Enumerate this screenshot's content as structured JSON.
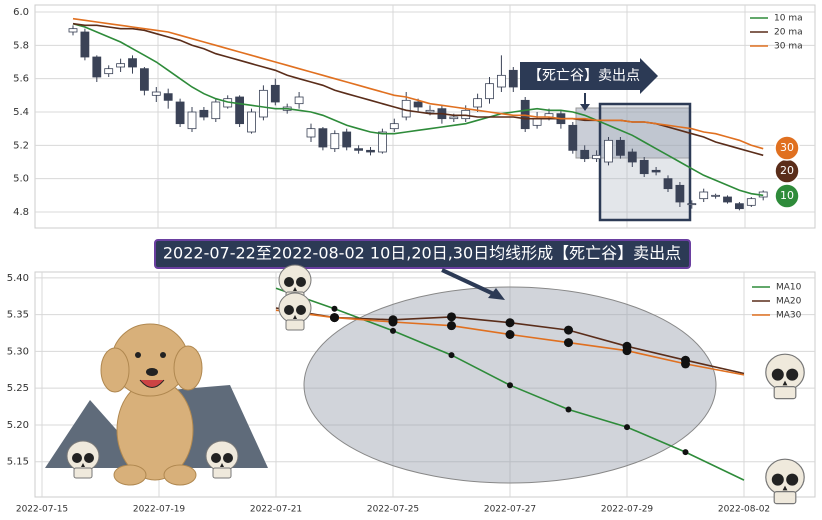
{
  "chart_data": [
    {
      "type": "candlestick",
      "ylim": [
        4.704,
        6.042
      ],
      "yticks": [
        4.8,
        {
          "value": 5.0,
          "label": "5.0"
        },
        5.2,
        5.4,
        5.6,
        5.8,
        {
          "value": 6.0,
          "label": "6.0"
        }
      ],
      "grid": true,
      "up_color": "#ffffff",
      "down_color": "#3a4256",
      "ohlc": [
        [
          5.88,
          5.92,
          5.86,
          5.9
        ],
        [
          5.88,
          5.9,
          5.71,
          5.73
        ],
        [
          5.73,
          5.74,
          5.58,
          5.61
        ],
        [
          5.63,
          5.68,
          5.61,
          5.66
        ],
        [
          5.67,
          5.72,
          5.64,
          5.69
        ],
        [
          5.72,
          5.74,
          5.63,
          5.67
        ],
        [
          5.66,
          5.67,
          5.5,
          5.53
        ],
        [
          5.5,
          5.55,
          5.46,
          5.52
        ],
        [
          5.51,
          5.54,
          5.42,
          5.47
        ],
        [
          5.46,
          5.48,
          5.31,
          5.33
        ],
        [
          5.3,
          5.43,
          5.28,
          5.4
        ],
        [
          5.41,
          5.43,
          5.35,
          5.37
        ],
        [
          5.36,
          5.48,
          5.34,
          5.46
        ],
        [
          5.43,
          5.5,
          5.42,
          5.48
        ],
        [
          5.49,
          5.5,
          5.31,
          5.33
        ],
        [
          5.28,
          5.42,
          5.27,
          5.4
        ],
        [
          5.37,
          5.56,
          5.35,
          5.53
        ],
        [
          5.56,
          5.6,
          5.44,
          5.46
        ],
        [
          5.41,
          5.45,
          5.39,
          5.43
        ],
        [
          5.45,
          5.52,
          5.42,
          5.49
        ],
        [
          5.25,
          5.33,
          5.22,
          5.3
        ],
        [
          5.3,
          5.31,
          5.17,
          5.19
        ],
        [
          5.18,
          5.29,
          5.16,
          5.27
        ],
        [
          5.28,
          5.3,
          5.17,
          5.19
        ],
        [
          5.18,
          5.2,
          5.15,
          5.17
        ],
        [
          5.17,
          5.19,
          5.14,
          5.16
        ],
        [
          5.16,
          5.3,
          5.15,
          5.28
        ],
        [
          5.3,
          5.36,
          5.28,
          5.33
        ],
        [
          5.37,
          5.52,
          5.35,
          5.47
        ],
        [
          5.46,
          5.48,
          5.4,
          5.43
        ],
        [
          5.4,
          5.44,
          5.38,
          5.41
        ],
        [
          5.42,
          5.44,
          5.33,
          5.36
        ],
        [
          5.36,
          5.39,
          5.34,
          5.37
        ],
        [
          5.36,
          5.44,
          5.34,
          5.41
        ],
        [
          5.43,
          5.51,
          5.4,
          5.48
        ],
        [
          5.48,
          5.61,
          5.45,
          5.57
        ],
        [
          5.55,
          5.74,
          5.52,
          5.62
        ],
        [
          5.65,
          5.67,
          5.52,
          5.55
        ],
        [
          5.47,
          5.49,
          5.28,
          5.3
        ],
        [
          5.32,
          5.4,
          5.3,
          5.36
        ],
        [
          5.37,
          5.42,
          5.35,
          5.39
        ],
        [
          5.39,
          5.41,
          5.3,
          5.33
        ],
        [
          5.32,
          5.34,
          5.15,
          5.17
        ],
        [
          5.17,
          5.2,
          5.1,
          5.12
        ],
        [
          5.12,
          5.17,
          5.1,
          5.14
        ],
        [
          5.1,
          5.25,
          5.08,
          5.23
        ],
        [
          5.23,
          5.25,
          5.12,
          5.14
        ],
        [
          5.16,
          5.18,
          5.07,
          5.1
        ],
        [
          5.11,
          5.13,
          5.01,
          5.03
        ],
        [
          5.05,
          5.07,
          5.02,
          5.04
        ],
        [
          5.0,
          5.02,
          4.92,
          4.94
        ],
        [
          4.96,
          4.98,
          4.83,
          4.86
        ],
        [
          4.85,
          4.87,
          4.82,
          4.85
        ],
        [
          4.88,
          4.94,
          4.86,
          4.92
        ],
        [
          4.9,
          4.91,
          4.88,
          4.9
        ],
        [
          4.89,
          4.9,
          4.85,
          4.86
        ],
        [
          4.85,
          4.86,
          4.81,
          4.82
        ],
        [
          4.84,
          4.89,
          4.83,
          4.88
        ],
        [
          4.89,
          4.93,
          4.87,
          4.92
        ]
      ],
      "series": [
        {
          "name": "10 ma",
          "color": "#2e8b3a",
          "badge": 10,
          "values": [
            5.93,
            5.91,
            5.88,
            5.85,
            5.82,
            5.78,
            5.74,
            5.7,
            5.65,
            5.6,
            5.55,
            5.51,
            5.48,
            5.46,
            5.45,
            5.44,
            5.43,
            5.42,
            5.42,
            5.41,
            5.4,
            5.38,
            5.35,
            5.32,
            5.3,
            5.28,
            5.27,
            5.27,
            5.28,
            5.29,
            5.3,
            5.31,
            5.32,
            5.33,
            5.35,
            5.37,
            5.39,
            5.4,
            5.41,
            5.42,
            5.41,
            5.41,
            5.4,
            5.38,
            5.35,
            5.32,
            5.29,
            5.26,
            5.22,
            5.18,
            5.14,
            5.1,
            5.06,
            5.02,
            4.99,
            4.96,
            4.93,
            4.91,
            4.9
          ]
        },
        {
          "name": "20 ma",
          "color": "#5a2d1a",
          "badge": 20,
          "values": [
            5.93,
            5.92,
            5.92,
            5.91,
            5.9,
            5.9,
            5.89,
            5.87,
            5.85,
            5.83,
            5.8,
            5.78,
            5.75,
            5.73,
            5.71,
            5.69,
            5.67,
            5.65,
            5.62,
            5.6,
            5.58,
            5.56,
            5.53,
            5.51,
            5.49,
            5.47,
            5.45,
            5.43,
            5.41,
            5.4,
            5.39,
            5.39,
            5.38,
            5.38,
            5.37,
            5.37,
            5.37,
            5.37,
            5.36,
            5.36,
            5.36,
            5.36,
            5.36,
            5.35,
            5.35,
            5.35,
            5.35,
            5.34,
            5.34,
            5.33,
            5.31,
            5.29,
            5.27,
            5.25,
            5.22,
            5.2,
            5.18,
            5.16,
            5.14
          ]
        },
        {
          "name": "30 ma",
          "color": "#e07020",
          "badge": 30,
          "values": [
            5.96,
            5.95,
            5.94,
            5.93,
            5.92,
            5.91,
            5.9,
            5.89,
            5.88,
            5.86,
            5.84,
            5.82,
            5.8,
            5.78,
            5.76,
            5.74,
            5.72,
            5.7,
            5.68,
            5.66,
            5.64,
            5.62,
            5.6,
            5.58,
            5.56,
            5.54,
            5.52,
            5.5,
            5.49,
            5.47,
            5.45,
            5.44,
            5.43,
            5.42,
            5.41,
            5.4,
            5.39,
            5.38,
            5.38,
            5.37,
            5.37,
            5.36,
            5.36,
            5.36,
            5.35,
            5.35,
            5.35,
            5.34,
            5.34,
            5.33,
            5.32,
            5.31,
            5.3,
            5.28,
            5.27,
            5.25,
            5.23,
            5.2,
            5.18
          ]
        }
      ],
      "annotation": "【死亡谷】卖出点"
    },
    {
      "type": "line",
      "title": "2022-07-22至2022-08-02 10日,20日,30日均线形成【死亡谷】卖出点",
      "x": [
        "2022-07-15",
        null,
        "2022-07-19",
        null,
        "2022-07-21",
        null,
        "2022-07-25",
        null,
        "2022-07-27",
        null,
        "2022-07-29",
        null,
        "2022-08-02"
      ],
      "ylim": [
        5.102,
        5.408
      ],
      "yticks": [
        5.15,
        {
          "value": 5.2,
          "label": "5.20"
        },
        5.25,
        {
          "value": 5.3,
          "label": "5.30"
        },
        5.35,
        {
          "value": 5.4,
          "label": "5.40"
        }
      ],
      "grid": true,
      "series": [
        {
          "name": "MA10",
          "color": "#2e8b3a",
          "values": [
            null,
            null,
            null,
            null,
            5.386,
            5.358,
            5.328,
            5.295,
            5.254,
            5.221,
            5.197,
            5.163,
            5.125
          ]
        },
        {
          "name": "MA20",
          "color": "#5a2d1a",
          "values": [
            null,
            null,
            null,
            null,
            5.359,
            5.346,
            5.343,
            5.347,
            5.339,
            5.329,
            5.307,
            5.288,
            5.27
          ]
        },
        {
          "name": "MA30",
          "color": "#e07020",
          "values": [
            null,
            null,
            null,
            null,
            5.356,
            5.346,
            5.34,
            5.335,
            5.323,
            5.312,
            5.301,
            5.283,
            5.268
          ]
        }
      ]
    }
  ]
}
